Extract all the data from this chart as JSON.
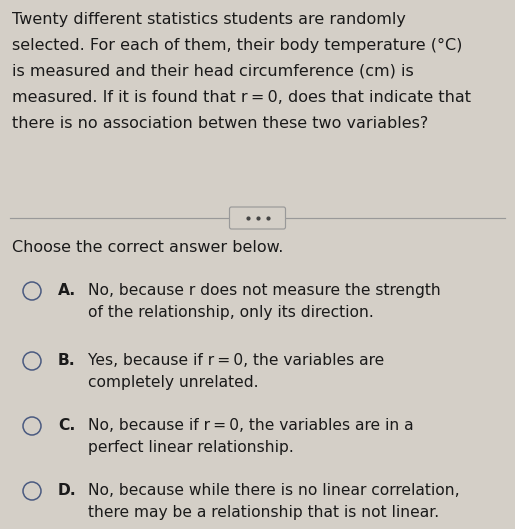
{
  "background_color": "#d4cfc7",
  "question_text": [
    "Twenty different statistics students are randomly",
    "selected. For each of them, their body temperature (°C)",
    "is measured and their head circumference (cm) is",
    "measured. If it is found that r = 0, does that indicate that",
    "there is no association betwen these two variables?"
  ],
  "prompt": "Choose the correct answer below.",
  "options": [
    {
      "letter": "A.",
      "lines": [
        "No, because r does not measure the strength",
        "of the relationship, only its direction."
      ]
    },
    {
      "letter": "B.",
      "lines": [
        "Yes, because if r = 0, the variables are",
        "completely unrelated."
      ]
    },
    {
      "letter": "C.",
      "lines": [
        "No, because if r = 0, the variables are in a",
        "perfect linear relationship."
      ]
    },
    {
      "letter": "D.",
      "lines": [
        "No, because while there is no linear correlation,",
        "there may be a relationship that is not linear."
      ]
    }
  ],
  "text_color": "#1a1a1a",
  "circle_color": "#4a5a80",
  "divider_color": "#999999",
  "dots_color": "#444444",
  "font_size_question": 11.5,
  "font_size_prompt": 11.5,
  "font_size_options": 11.2,
  "font_size_letter": 11.2
}
